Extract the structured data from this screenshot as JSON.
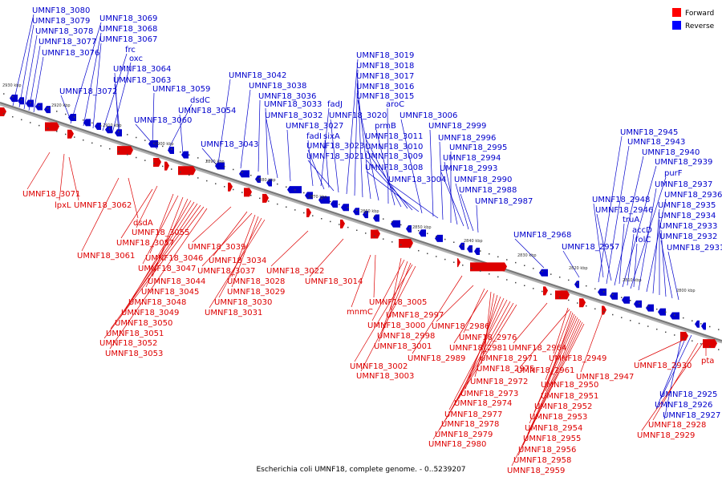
{
  "caption": "Escherichia coli UMNF18, complete genome. - 0..5239207",
  "legend": [
    {
      "label": "Forward",
      "color": "#ff0000"
    },
    {
      "label": "Reverse",
      "color": "#0000ff"
    }
  ],
  "colors": {
    "forward": "#dd0000",
    "reverse": "#0000cc",
    "axis": "#777777"
  },
  "ticks": [
    "2930 kbp",
    "2920 kbp",
    "2910 kbp",
    "2900 kbp",
    "2890 kbp",
    "2880 kbp",
    "2870 kbp",
    "2860 kbp",
    "2850 kbp",
    "2840 kbp",
    "2830 kbp",
    "2820 kbp",
    "2810 kbp",
    "2800 kbp"
  ],
  "reverse_labels": [
    "UMNF18_3080",
    "UMNF18_3079",
    "UMNF18_3078",
    "UMNF18_3077",
    "UMNF18_3076",
    "UMNF18_3069",
    "UMNF18_3068",
    "UMNF18_3067",
    "frc",
    "oxc",
    "UMNF18_3064",
    "UMNF18_3063",
    "UMNF18_3072",
    "UMNF18_3059",
    "dsdC",
    "UMNF18_3054",
    "UMNF18_3060",
    "UMNF18_3042",
    "UMNF18_3038",
    "UMNF18_3036",
    "UMNF18_3033",
    "UMNF18_3032",
    "UMNF18_3027",
    "UMNF18_3043",
    "fadJ",
    "fadI",
    "sixA",
    "UMNF18_3023",
    "UMNF18_3021",
    "UMNF18_3020",
    "UMNF18_3019",
    "UMNF18_3018",
    "UMNF18_3017",
    "UMNF18_3016",
    "UMNF18_3015",
    "aroC",
    "prmB",
    "UMNF18_3011",
    "UMNF18_3010",
    "UMNF18_3009",
    "UMNF18_3008",
    "UMNF18_3006",
    "UMNF18_2999",
    "UMNF18_2996",
    "UMNF18_2995",
    "UMNF18_2994",
    "UMNF18_2993",
    "UMNF18_3004",
    "UMNF18_2990",
    "UMNF18_2988",
    "UMNF18_2987",
    "UMNF18_2968",
    "UMNF18_2957",
    "UMNF18_2945",
    "UMNF18_2943",
    "UMNF18_2940",
    "UMNF18_2939",
    "purF",
    "UMNF18_2937",
    "UMNF18_2936",
    "UMNF18_2935",
    "UMNF18_2934",
    "UMNF18_2933",
    "UMNF18_2932",
    "UMNF18_2931",
    "UMNF18_2948",
    "UMNF18_2946",
    "truA",
    "accD",
    "folC",
    "UMNF18_2925",
    "UMNF18_2926",
    "UMNF18_2927"
  ],
  "forward_labels": [
    "UMNF18_3071",
    "lpxL",
    "UMNF18_3062",
    "dsdA",
    "UMNF18_3055",
    "UMNF18_3057",
    "UMNF18_3061",
    "UMNF18_3046",
    "UMNF18_3047",
    "UMNF18_3044",
    "UMNF18_3045",
    "UMNF18_3048",
    "UMNF18_3049",
    "UMNF18_3050",
    "UMNF18_3051",
    "UMNF18_3052",
    "UMNF18_3053",
    "UMNF18_3039",
    "UMNF18_3034",
    "UMNF18_3037",
    "UMNF18_3028",
    "UMNF18_3029",
    "UMNF18_3030",
    "UMNF18_3031",
    "UMNF18_3022",
    "UMNF18_3014",
    "UMNF18_3005",
    "mnmC",
    "UMNF18_2997",
    "UMNF18_3000",
    "UMNF18_2998",
    "UMNF18_3001",
    "UMNF18_2989",
    "UMNF18_3002",
    "UMNF18_3003",
    "UMNF18_2986",
    "UMNF18_2976",
    "UMNF18_2981",
    "UMNF18_2971",
    "UMNF18_2975",
    "UMNF18_2972",
    "UMNF18_2973",
    "UMNF18_2974",
    "UMNF18_2977",
    "UMNF18_2978",
    "UMNF18_2979",
    "UMNF18_2980",
    "UMNF18_2964",
    "UMNF18_2949",
    "UMNF18_2961",
    "UMNF18_2950",
    "UMNF18_2951",
    "UMNF18_2952",
    "UMNF18_2953",
    "UMNF18_2954",
    "UMNF18_2955",
    "UMNF18_2956",
    "UMNF18_2958",
    "UMNF18_2959",
    "UMNF18_2947",
    "UMNF18_2930",
    "pta",
    "UMNF18_2928",
    "UMNF18_2929"
  ]
}
